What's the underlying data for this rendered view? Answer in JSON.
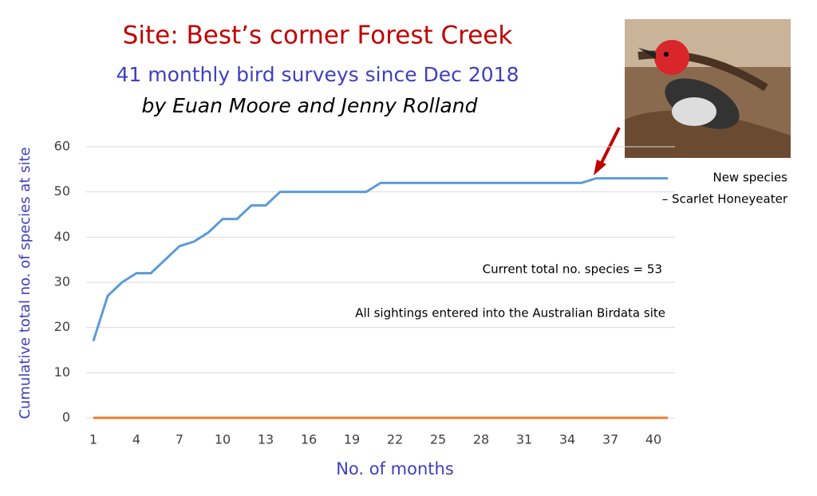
{
  "chart_data": {
    "type": "line",
    "title": "Site: Best’s corner Forest Creek",
    "subtitle": "41 monthly bird surveys since Dec 2018",
    "byline": "by Euan Moore and Jenny Rolland",
    "x_label": "No. of months",
    "y_label": "Cumulative total no. of species at site",
    "x": [
      1,
      2,
      3,
      4,
      5,
      6,
      7,
      8,
      9,
      10,
      11,
      12,
      13,
      14,
      15,
      16,
      17,
      18,
      19,
      20,
      21,
      22,
      23,
      24,
      25,
      26,
      27,
      28,
      29,
      30,
      31,
      32,
      33,
      34,
      35,
      36,
      37,
      38,
      39,
      40,
      41
    ],
    "series": [
      {
        "color": "#5b9bd5",
        "values": [
          17,
          27,
          30,
          32,
          32,
          35,
          38,
          39,
          41,
          44,
          44,
          47,
          47,
          50,
          50,
          50,
          50,
          50,
          50,
          50,
          52,
          52,
          52,
          52,
          52,
          52,
          52,
          52,
          52,
          52,
          52,
          52,
          52,
          52,
          52,
          53,
          53,
          53,
          53,
          53,
          53
        ]
      },
      {
        "color": "#ed7d31",
        "values": [
          0,
          0,
          0,
          0,
          0,
          0,
          0,
          0,
          0,
          0,
          0,
          0,
          0,
          0,
          0,
          0,
          0,
          0,
          0,
          0,
          0,
          0,
          0,
          0,
          0,
          0,
          0,
          0,
          0,
          0,
          0,
          0,
          0,
          0,
          0,
          0,
          0,
          0,
          0,
          0,
          0
        ]
      }
    ],
    "xlim": [
      0.5,
      41.5
    ],
    "xticks": [
      1,
      4,
      7,
      10,
      13,
      16,
      19,
      22,
      25,
      28,
      31,
      34,
      37,
      40
    ],
    "ylim": [
      0,
      60
    ],
    "yticks": [
      0,
      10,
      20,
      30,
      40,
      50,
      60
    ],
    "grid": true,
    "annotations": [
      "New species",
      "– Scarlet Honeyeater",
      "Current total no. species = 53",
      "All sightings entered into the Australian Birdata site"
    ]
  }
}
